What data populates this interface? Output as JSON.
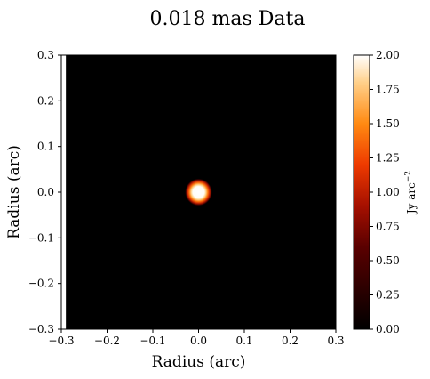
{
  "chart_data": {
    "type": "heatmap",
    "title": "0.018 mas Data",
    "xlabel": "Radius (arc)",
    "ylabel": "Radius (arc)",
    "xlim": [
      -0.3,
      0.3
    ],
    "ylim": [
      -0.3,
      0.3
    ],
    "x_ticks": [
      "−0.3",
      "−0.2",
      "−0.1",
      "0.0",
      "0.1",
      "0.2",
      "0.3"
    ],
    "y_ticks": [
      "−0.3",
      "−0.2",
      "−0.1",
      "0.0",
      "0.1",
      "0.2",
      "0.3"
    ],
    "colorbar": {
      "label": "Jy arc",
      "label_exponent": "−2",
      "range": [
        0.0,
        2.0
      ],
      "ticks": [
        "0.00",
        "0.25",
        "0.50",
        "0.75",
        "1.00",
        "1.25",
        "1.50",
        "1.75",
        "2.00"
      ],
      "colormap": "gist_heat"
    },
    "source": {
      "center_x": 0.0,
      "center_y": 0.0,
      "peak_value": 2.0,
      "core_radius": 0.014,
      "halo_radius": 0.03
    },
    "data_coverage_x": [
      -0.29,
      0.3
    ],
    "grid": false,
    "background_value": 0.0
  }
}
